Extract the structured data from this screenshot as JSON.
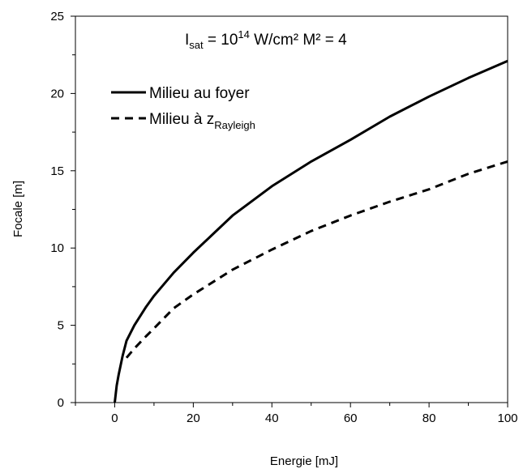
{
  "chart_data": {
    "type": "line",
    "title": "",
    "annotation": {
      "i": "I",
      "i_sub": "sat",
      "mid": " = 10",
      "exp": "14",
      "rest": " W/cm²  M² = 4"
    },
    "xlabel": "Energie [mJ]",
    "ylabel": "Focale [m]",
    "xlim": [
      -10,
      100
    ],
    "ylim": [
      0,
      25
    ],
    "xticks": [
      0,
      20,
      40,
      60,
      80,
      100
    ],
    "yticks": [
      0,
      5,
      10,
      15,
      20,
      25
    ],
    "grid": false,
    "legend_position": "top-left",
    "series": [
      {
        "name": "Milieu au foyer",
        "style": "solid",
        "x": [
          0,
          0.5,
          1,
          2,
          3,
          5,
          8,
          10,
          15,
          20,
          25,
          30,
          40,
          50,
          60,
          70,
          80,
          90,
          100
        ],
        "y": [
          0,
          1.1,
          1.8,
          3.0,
          4.0,
          5.0,
          6.2,
          6.9,
          8.4,
          9.7,
          10.9,
          12.1,
          14.0,
          15.6,
          17.0,
          18.5,
          19.8,
          21.0,
          22.1
        ]
      },
      {
        "name": "Milieu à z",
        "name_sub": "Rayleigh",
        "style": "dashed",
        "x": [
          3,
          5,
          8,
          10,
          15,
          20,
          25,
          30,
          40,
          50,
          60,
          70,
          80,
          90,
          100
        ],
        "y": [
          2.9,
          3.5,
          4.3,
          4.8,
          6.1,
          7.0,
          7.8,
          8.6,
          9.9,
          11.1,
          12.1,
          13.0,
          13.8,
          14.8,
          15.6
        ]
      }
    ]
  }
}
